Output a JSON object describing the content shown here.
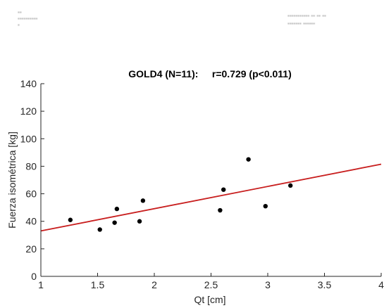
{
  "header": {
    "left_lines": [
      "▪▪",
      "▪▪▪▪▪▪▪▪▪▪",
      "▪"
    ],
    "right_lines": [
      "▪▪▪▪▪▪▪▪▪▪▪ ▪▪ ▪▪ ▪▪",
      "▪▪▪▪▪▪▪ ▪▪▪▪▪▪"
    ]
  },
  "chart_data": {
    "type": "scatter",
    "title": "GOLD4 (N=11):     r=0.729 (p<0.011)",
    "xlabel": "Qt [cm]",
    "ylabel": "Fuerza isométrica [kg]",
    "xlim": [
      1,
      4
    ],
    "ylim": [
      0,
      140
    ],
    "xticks": [
      1,
      1.5,
      2,
      2.5,
      3,
      3.5,
      4
    ],
    "xtick_labels": [
      "1",
      "1.5",
      "2",
      "2.5",
      "3",
      "3.5",
      "4"
    ],
    "yticks": [
      0,
      20,
      40,
      60,
      80,
      100,
      120,
      140
    ],
    "ytick_labels": [
      "0",
      "20",
      "40",
      "60",
      "80",
      "100",
      "120",
      "140"
    ],
    "grid": false,
    "points": [
      {
        "x": 1.26,
        "y": 41
      },
      {
        "x": 1.52,
        "y": 34
      },
      {
        "x": 1.65,
        "y": 39
      },
      {
        "x": 1.67,
        "y": 49
      },
      {
        "x": 1.87,
        "y": 40
      },
      {
        "x": 1.9,
        "y": 55
      },
      {
        "x": 2.58,
        "y": 48
      },
      {
        "x": 2.61,
        "y": 63
      },
      {
        "x": 2.83,
        "y": 85
      },
      {
        "x": 2.98,
        "y": 51
      },
      {
        "x": 3.2,
        "y": 66
      }
    ],
    "fit_line": {
      "x": [
        1,
        4
      ],
      "y": [
        33,
        81.5
      ]
    },
    "colors": {
      "points": "#000000",
      "fit_line": "#c81e1e",
      "axes": "#262626"
    }
  }
}
